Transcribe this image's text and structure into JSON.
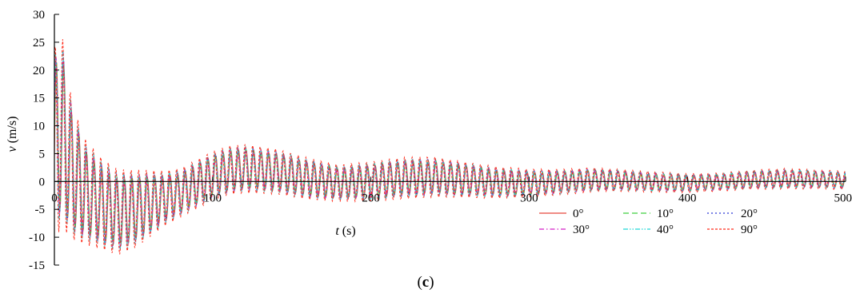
{
  "figure": {
    "caption_prefix": "(",
    "caption_letter": "c",
    "caption_suffix": ")"
  },
  "chart_data": {
    "type": "line",
    "title": "",
    "xlabel": "t (s)",
    "xlabel_var": "t",
    "xlabel_unit": " (s)",
    "ylabel": "v (m/s)",
    "ylabel_var": "v",
    "ylabel_unit": " (m/s)",
    "xlim": [
      0,
      500
    ],
    "ylim": [
      -15,
      30
    ],
    "xticks": [
      0,
      100,
      200,
      300,
      400,
      500
    ],
    "xtick_labels": [
      "0",
      "100",
      "200",
      "300",
      "400",
      "500"
    ],
    "yticks": [
      -15,
      -10,
      -5,
      0,
      5,
      10,
      15,
      20,
      25,
      30
    ],
    "ytick_labels": [
      "-15",
      "-10",
      "-5",
      "0",
      "5",
      "10",
      "15",
      "20",
      "25",
      "30"
    ],
    "grid": false,
    "legend_position": "lower-right",
    "oscillation_period_s": 4.8,
    "envelope_t": [
      0,
      3,
      6,
      10,
      15,
      20,
      30,
      40,
      50,
      60,
      70,
      80,
      90,
      100,
      110,
      120,
      140,
      160,
      180,
      200,
      220,
      240,
      260,
      280,
      300,
      320,
      340,
      360,
      380,
      400,
      420,
      440,
      460,
      480,
      500
    ],
    "envelope_center": [
      4,
      10,
      8,
      3,
      0,
      -2,
      -4,
      -5.5,
      -5,
      -4,
      -3,
      -2,
      -0.5,
      1,
      2,
      2.3,
      1.8,
      0.5,
      -0.3,
      0,
      0.6,
      0.8,
      0.3,
      -0.2,
      -0.3,
      -0.1,
      0.3,
      0.2,
      -0.1,
      -0.3,
      -0.1,
      0.3,
      0.5,
      0.4,
      0.2
    ],
    "envelope_amplitude": [
      18,
      17,
      15,
      12,
      10,
      8.5,
      7.5,
      7,
      6.5,
      5.5,
      4.5,
      4,
      4,
      4,
      4,
      4,
      3.7,
      3.4,
      3,
      3.2,
      3.4,
      3.3,
      2.9,
      2.6,
      2.3,
      2.1,
      2,
      1.8,
      1.7,
      1.6,
      1.5,
      1.6,
      1.7,
      1.6,
      1.5
    ],
    "series": [
      {
        "name": "0°",
        "color": "#e8473c",
        "dash": "solid",
        "amplitude_scale": 0.86,
        "phase": 0.0
      },
      {
        "name": "10°",
        "color": "#3fcf3f",
        "dash": "long-dash",
        "amplitude_scale": 0.9,
        "phase": 0.18
      },
      {
        "name": "20°",
        "color": "#2b37d6",
        "dash": "dot",
        "amplitude_scale": 0.94,
        "phase": 0.36
      },
      {
        "name": "30°",
        "color": "#d41ec8",
        "dash": "dash-dot",
        "amplitude_scale": 0.97,
        "phase": 0.54
      },
      {
        "name": "40°",
        "color": "#1fd6d6",
        "dash": "dash-dot-dot",
        "amplitude_scale": 1.0,
        "phase": 0.72
      },
      {
        "name": "90°",
        "color": "#ff2b1a",
        "dash": "short-dash",
        "amplitude_scale": 1.1,
        "phase": 0.95
      }
    ]
  }
}
